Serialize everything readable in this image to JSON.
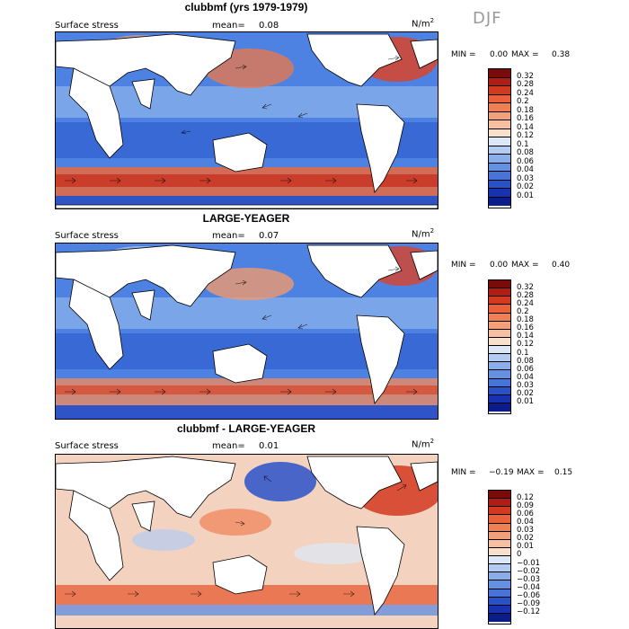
{
  "season": "DJF",
  "units_sup": "2",
  "units_base": "N/m",
  "panels": [
    {
      "title": "clubbmf (yrs 1979-1979)",
      "field": "Surface stress",
      "mean_label": "mean=",
      "mean": "0.08",
      "min_label": "MIN =",
      "min": "0.00",
      "max_label": "MAX =",
      "max": "0.38",
      "levels": [
        "0.32",
        "0.28",
        "0.24",
        "0.2",
        "0.18",
        "0.16",
        "0.14",
        "0.12",
        "0.1",
        "0.08",
        "0.06",
        "0.04",
        "0.03",
        "0.02",
        "0.01"
      ],
      "colors": [
        "#7a0b0b",
        "#b01d14",
        "#d23a20",
        "#e8613a",
        "#ef7f55",
        "#f3a07a",
        "#f7c0a2",
        "#f9e0cc",
        "#dce8f8",
        "#b4ccf2",
        "#8aaeea",
        "#6690e0",
        "#4774d6",
        "#2a52c8",
        "#1632b0",
        "#0a1c8a"
      ]
    },
    {
      "title": "LARGE-YEAGER",
      "field": "Surface stress",
      "mean_label": "mean=",
      "mean": "0.07",
      "min_label": "MIN =",
      "min": "0.00",
      "max_label": "MAX =",
      "max": "0.40",
      "levels": [
        "0.32",
        "0.28",
        "0.24",
        "0.2",
        "0.18",
        "0.16",
        "0.14",
        "0.12",
        "0.1",
        "0.08",
        "0.06",
        "0.04",
        "0.03",
        "0.02",
        "0.01"
      ],
      "colors": [
        "#7a0b0b",
        "#b01d14",
        "#d23a20",
        "#e8613a",
        "#ef7f55",
        "#f3a07a",
        "#f7c0a2",
        "#f9e0cc",
        "#dce8f8",
        "#b4ccf2",
        "#8aaeea",
        "#6690e0",
        "#4774d6",
        "#2a52c8",
        "#1632b0",
        "#0a1c8a"
      ]
    },
    {
      "title": "clubbmf - LARGE-YEAGER",
      "field": "Surface stress",
      "mean_label": "mean=",
      "mean": "0.01",
      "min_label": "MIN =",
      "min": "−0.19",
      "max_label": "MAX =",
      "max": "0.15",
      "levels": [
        "0.12",
        "0.09",
        "0.06",
        "0.04",
        "0.03",
        "0.02",
        "0.01",
        "0",
        "−0.01",
        "−0.02",
        "−0.03",
        "−0.04",
        "−0.06",
        "−0.09",
        "−0.12"
      ],
      "colors": [
        "#7a0b0b",
        "#b01d14",
        "#d23a20",
        "#e8613a",
        "#ef7f55",
        "#f3a07a",
        "#f7c0a2",
        "#f9e0cc",
        "#dce8f8",
        "#b4ccf2",
        "#8aaeea",
        "#6690e0",
        "#4774d6",
        "#2a52c8",
        "#1632b0",
        "#0a1c8a"
      ]
    }
  ]
}
